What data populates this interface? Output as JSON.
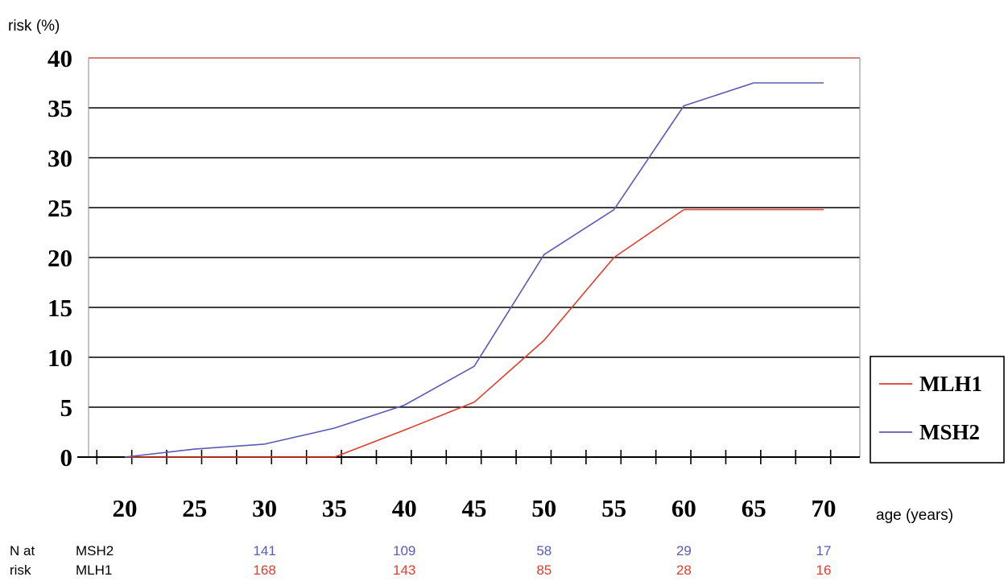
{
  "chart_data": {
    "type": "line",
    "ylabel": "risk (%)",
    "xlabel": "age (years)",
    "ylim": [
      0,
      40
    ],
    "yticks": [
      0,
      5,
      10,
      15,
      20,
      25,
      30,
      35,
      40
    ],
    "xticks": [
      20,
      25,
      30,
      35,
      40,
      45,
      50,
      55,
      60,
      65,
      70
    ],
    "xlim": [
      20,
      70
    ],
    "grid": "horizontal",
    "legend_position": "right",
    "series": [
      {
        "name": "MLH1",
        "color": "#e03c2c",
        "x": [
          20,
          25,
          30,
          35,
          40,
          45,
          50,
          55,
          60,
          65,
          70
        ],
        "y": [
          0,
          0,
          0,
          0,
          2.7,
          5.5,
          11.7,
          20.0,
          24.8,
          24.8,
          24.8
        ]
      },
      {
        "name": "MSH2",
        "color": "#5a5ab4",
        "x": [
          20,
          25,
          30,
          35,
          40,
          45,
          50,
          55,
          60,
          65,
          70
        ],
        "y": [
          0,
          0.8,
          1.3,
          2.9,
          5.2,
          9.1,
          20.3,
          24.8,
          35.2,
          37.5,
          37.5
        ]
      }
    ],
    "at_risk": {
      "label_line1": "N at",
      "label_line2": "risk",
      "rows": [
        {
          "name": "MSH2",
          "color": "#5a5ab4",
          "ages": [
            30,
            40,
            50,
            60,
            70
          ],
          "values": [
            "141",
            "109",
            "58",
            "29",
            "17"
          ]
        },
        {
          "name": "MLH1",
          "color": "#e03c2c",
          "ages": [
            30,
            40,
            50,
            60,
            70
          ],
          "values": [
            "168",
            "143",
            "85",
            "28",
            "16"
          ]
        }
      ]
    }
  }
}
